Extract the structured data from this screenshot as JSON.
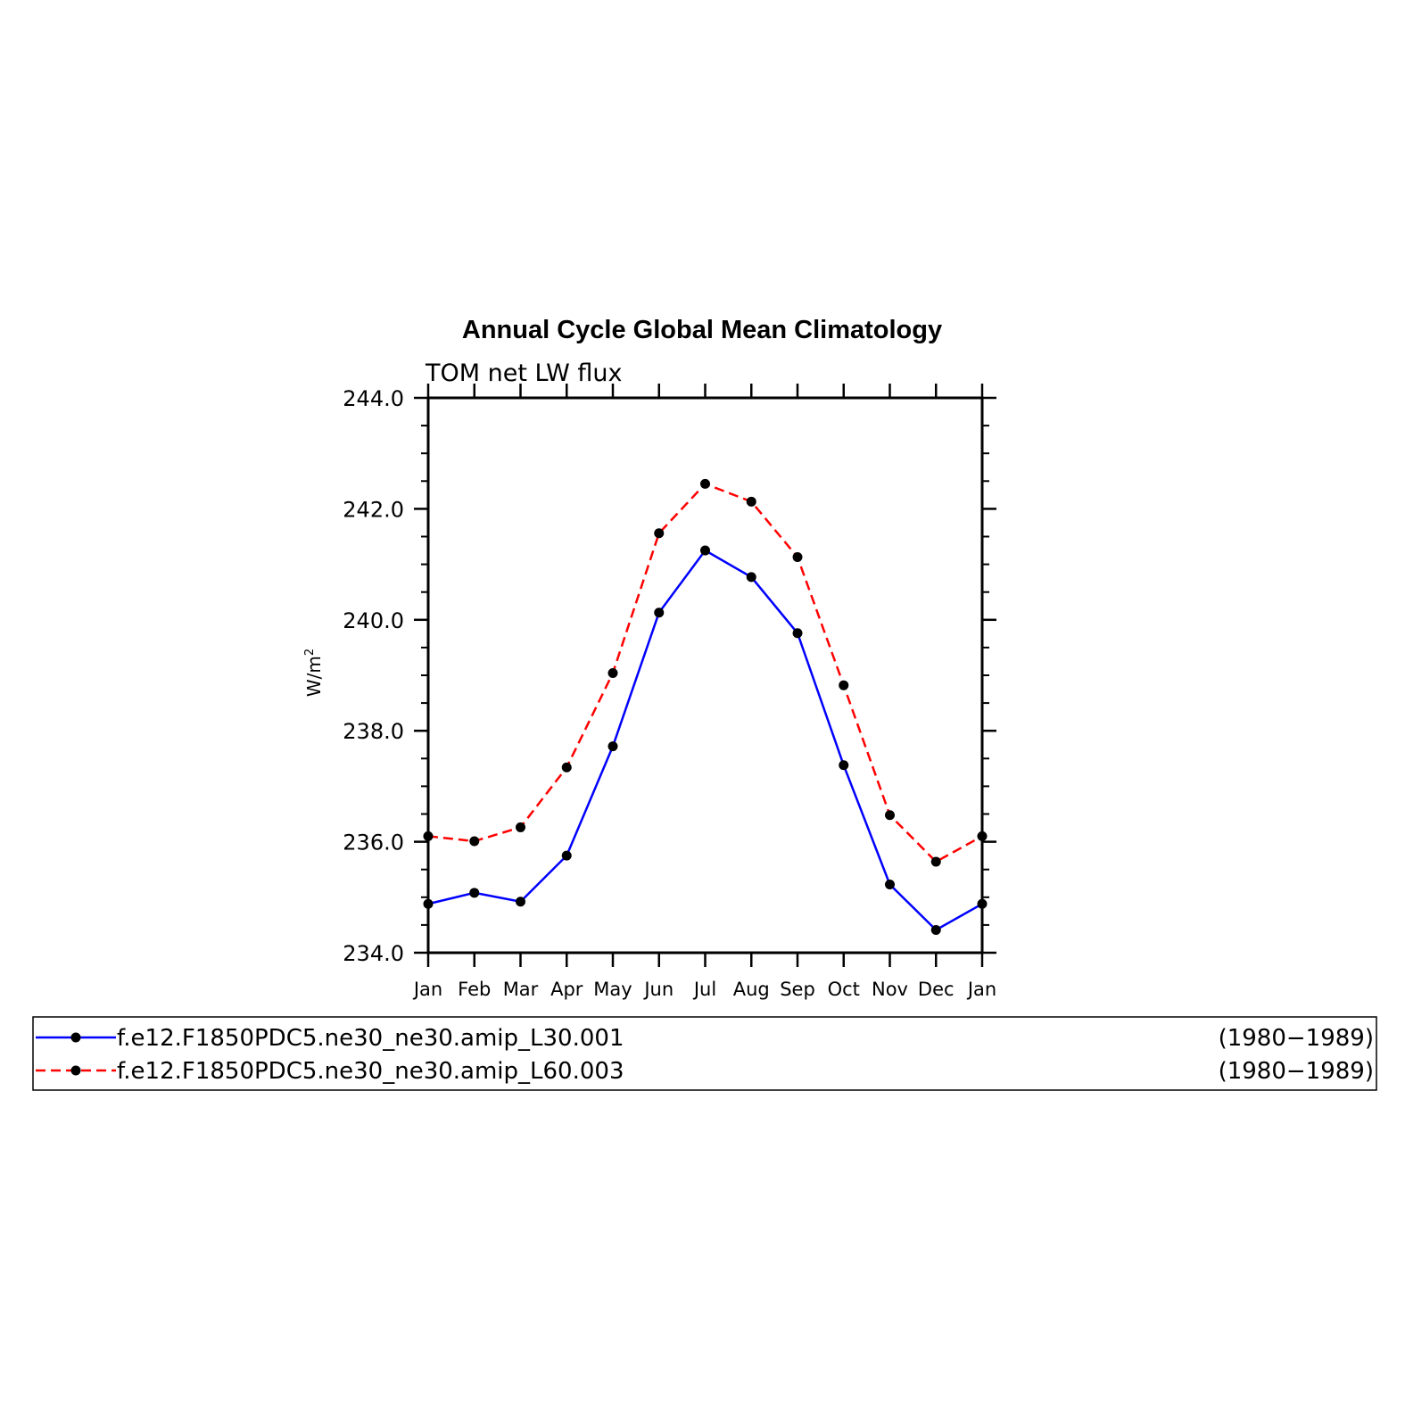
{
  "chart_data": {
    "type": "line",
    "title": "Annual Cycle Global Mean Climatology",
    "subtitle": "TOM net LW flux",
    "ylabel": "W/m",
    "ylabel_superscript": "2",
    "ylim": [
      234.0,
      244.0
    ],
    "yticks": [
      "234.0",
      "236.0",
      "238.0",
      "240.0",
      "242.0",
      "244.0"
    ],
    "categories": [
      "Jan",
      "Feb",
      "Mar",
      "Apr",
      "May",
      "Jun",
      "Jul",
      "Aug",
      "Sep",
      "Oct",
      "Nov",
      "Dec",
      "Jan"
    ],
    "grid": false,
    "legend_position": "bottom",
    "series": [
      {
        "name": "f.e12.F1850PDC5.ne30_ne30.amip_L30.001",
        "period": "(1980−1989)",
        "color": "#0000ff",
        "style": "solid",
        "values": [
          234.88,
          235.08,
          234.92,
          235.75,
          237.72,
          240.13,
          241.25,
          240.77,
          239.76,
          237.38,
          235.23,
          234.41,
          234.88
        ]
      },
      {
        "name": "f.e12.F1850PDC5.ne30_ne30.amip_L60.003",
        "period": "(1980−1989)",
        "color": "#ff0000",
        "style": "dashed",
        "values": [
          236.1,
          236.01,
          236.26,
          237.34,
          239.04,
          241.56,
          242.45,
          242.13,
          241.13,
          238.82,
          236.48,
          235.64,
          236.1
        ]
      }
    ]
  }
}
